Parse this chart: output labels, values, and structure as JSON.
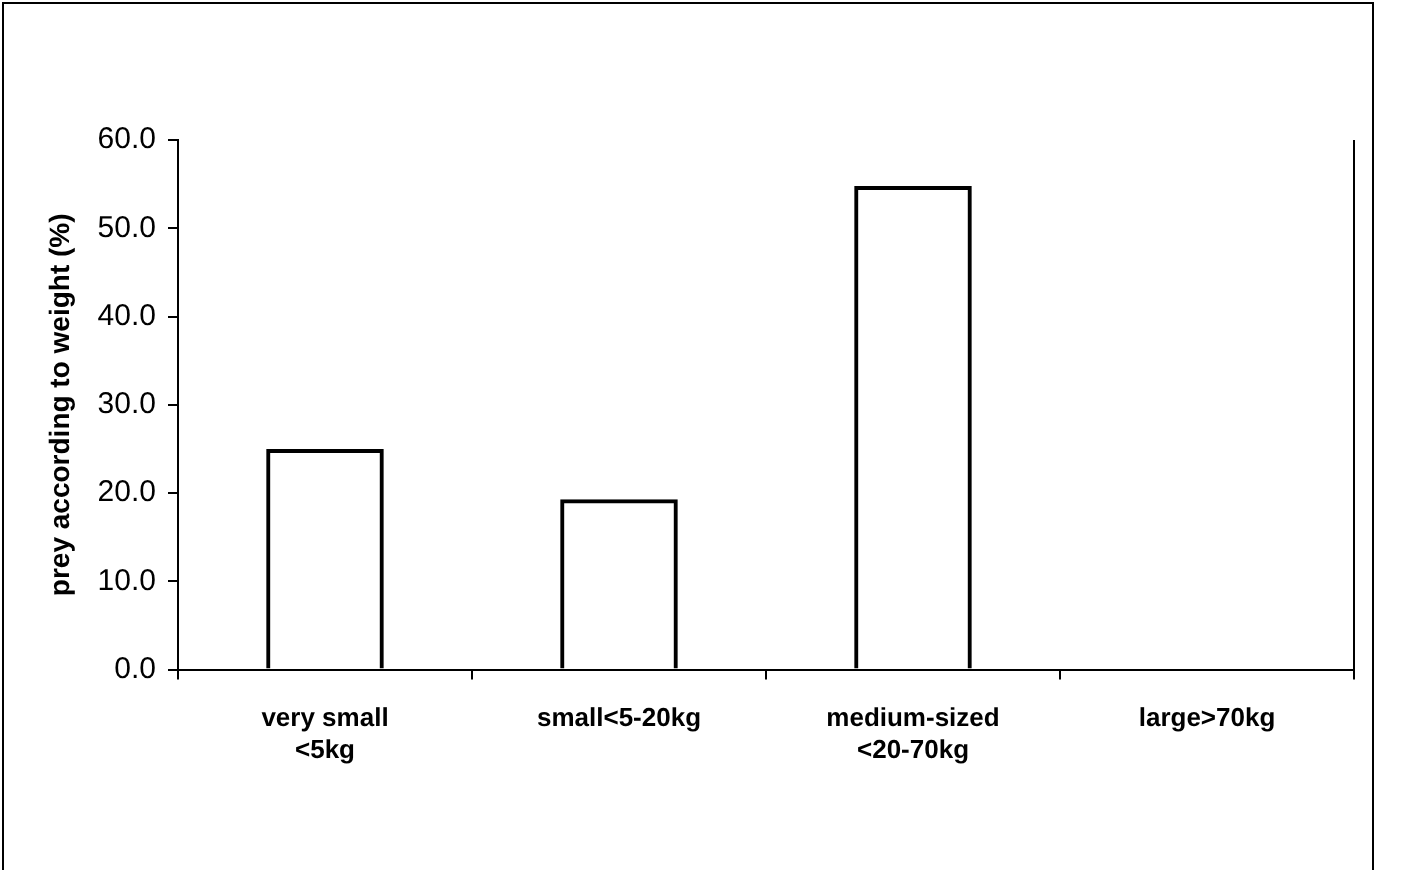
{
  "chart_data": {
    "type": "bar",
    "ylabel": "prey according to weight (%)",
    "categories": [
      "very small <5kg",
      "small<5-20kg",
      "medium-sized <20-70kg",
      "large>70kg"
    ],
    "values": [
      25.0,
      19.3,
      54.8,
      0
    ],
    "color": "#000000",
    "ylim": [
      0,
      60
    ],
    "yticks": [
      {
        "value": 0,
        "label": "0.0"
      },
      {
        "value": 10,
        "label": "10.0"
      },
      {
        "value": 20,
        "label": "20.0"
      },
      {
        "value": 30,
        "label": "30.0"
      },
      {
        "value": 40,
        "label": "40.0"
      },
      {
        "value": 50,
        "label": "50.0"
      },
      {
        "value": 60,
        "label": "60.0"
      }
    ],
    "grid": false,
    "legend": false
  }
}
